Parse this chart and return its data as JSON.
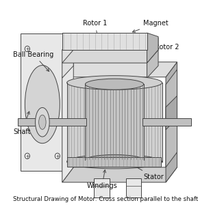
{
  "title": "Structural Drawing of Motor: Cross section parallel to the shaft",
  "title_fontsize": 8.5,
  "bg_color": "#ffffff",
  "line_color": "#444444",
  "fc_light": "#e8e8e8",
  "fc_mid": "#cccccc",
  "fc_dark": "#aaaaaa",
  "fc_white": "#f5f5f5",
  "annotations": [
    {
      "label": "Ball Bearing",
      "tpos": [
        0.01,
        0.79
      ],
      "apos": [
        0.21,
        0.69
      ]
    },
    {
      "label": "Rotor 1",
      "tpos": [
        0.38,
        0.955
      ],
      "apos": [
        0.46,
        0.875
      ]
    },
    {
      "label": "Magnet",
      "tpos": [
        0.7,
        0.955
      ],
      "apos": [
        0.63,
        0.905
      ]
    },
    {
      "label": "Rotor 2",
      "tpos": [
        0.76,
        0.83
      ],
      "apos": [
        0.7,
        0.755
      ]
    },
    {
      "label": "Shaft",
      "tpos": [
        0.01,
        0.38
      ],
      "apos": [
        0.1,
        0.5
      ]
    },
    {
      "label": "Windings",
      "tpos": [
        0.4,
        0.09
      ],
      "apos": [
        0.5,
        0.19
      ]
    },
    {
      "label": "Stator",
      "tpos": [
        0.7,
        0.14
      ],
      "apos": [
        0.63,
        0.21
      ]
    }
  ]
}
